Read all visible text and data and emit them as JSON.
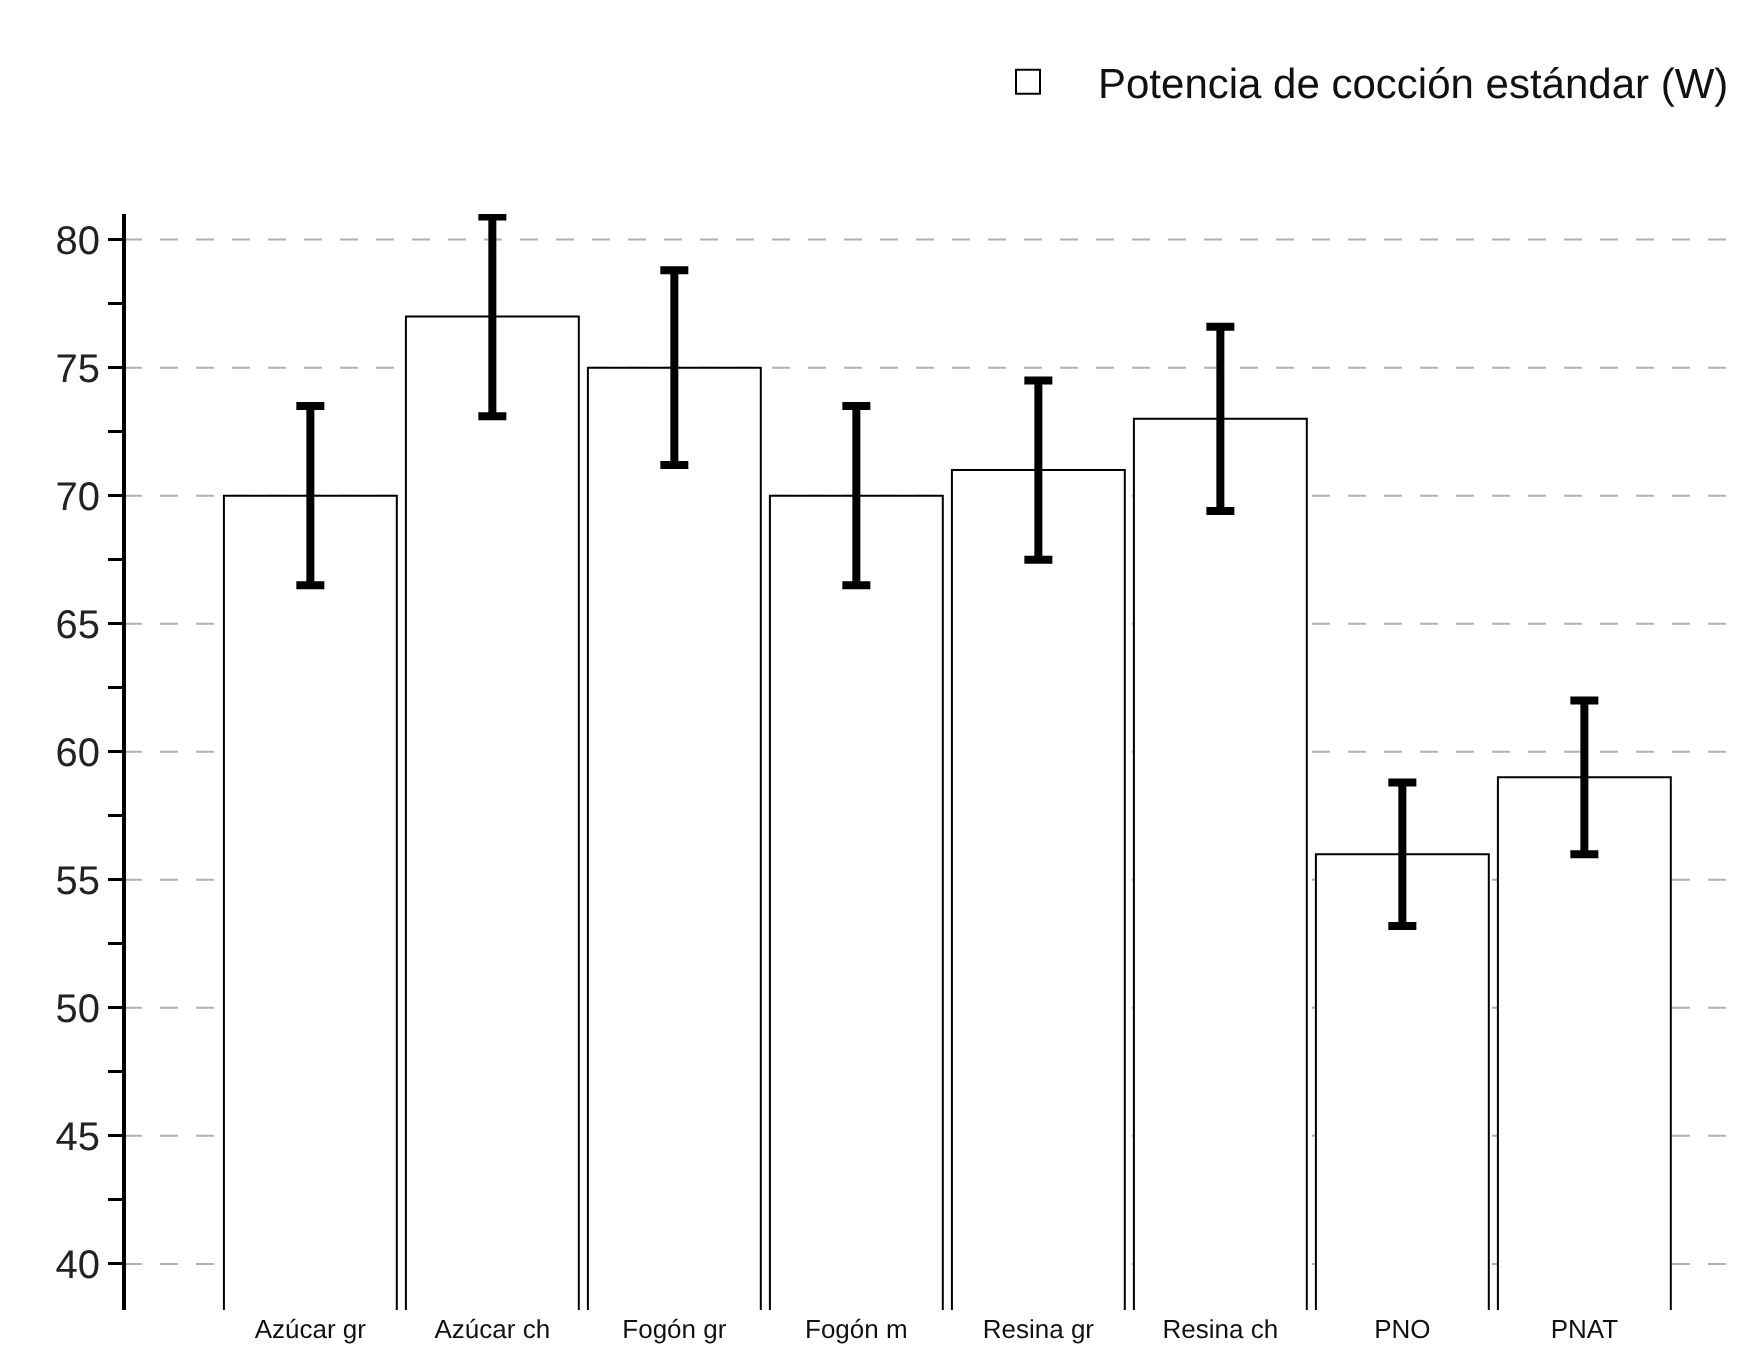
{
  "chart_data": {
    "type": "bar",
    "categories": [
      "Azúcar gr",
      "Azúcar ch",
      "Fogón gr",
      "Fogón m",
      "Resina gr",
      "Resina ch",
      "PNO",
      "PNAT"
    ],
    "series": [
      {
        "name": "Potencia de cocción estándar (W)",
        "color": "#ffffff",
        "values": [
          70,
          77,
          75,
          70,
          71,
          73,
          56,
          59
        ],
        "errors": [
          3.5,
          3.9,
          3.8,
          3.5,
          3.5,
          3.6,
          2.8,
          3.0
        ]
      }
    ],
    "ylim": [
      38.2,
      81
    ],
    "yticks": [
      40,
      {
        "value": 42.5,
        "label": null
      },
      45,
      {
        "value": 47.5,
        "label": null
      },
      50,
      {
        "value": 52.5,
        "label": null
      },
      55,
      {
        "value": 57.5,
        "label": null
      },
      60,
      {
        "value": 62.5,
        "label": null
      },
      65,
      {
        "value": 67.5,
        "label": null
      },
      70,
      {
        "value": 72.5,
        "label": null
      },
      75,
      {
        "value": 77.5,
        "label": null
      },
      80
    ],
    "grid": "y",
    "legend": "top right"
  }
}
